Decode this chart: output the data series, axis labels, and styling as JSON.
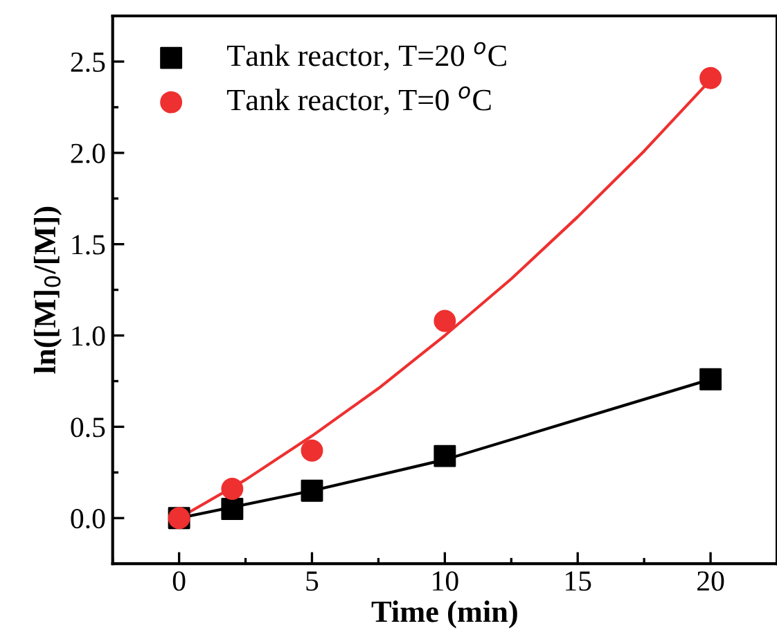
{
  "chart_data": {
    "type": "scatter",
    "xlabel": "Time (min)",
    "ylabel": "ln([M]$_{0}$/[M])",
    "xlim": [
      -2.5,
      22.5
    ],
    "xticks": [
      0,
      5,
      10,
      15,
      20
    ],
    "ylim": [
      -0.25,
      2.75
    ],
    "yticks": [
      {
        "value": 0,
        "label": "0.0"
      },
      0.5,
      {
        "value": 1,
        "label": "1.0"
      },
      1.5,
      {
        "value": 2,
        "label": "2.0"
      },
      2.5
    ],
    "grid": false,
    "legend": "top left",
    "series": [
      {
        "name": "Tank reactor, T=20 $^{o}$C",
        "color": "#000000",
        "marker": "square",
        "x": [
          0,
          2,
          5,
          10,
          20
        ],
        "values": [
          0,
          0.05,
          0.15,
          0.34,
          0.76
        ]
      },
      {
        "name": "Tank reactor, T=0 $^{o}$C",
        "color": "#ee3030",
        "marker": "circle",
        "x": [
          0,
          2,
          5,
          10,
          20
        ],
        "values": [
          0,
          0.16,
          0.37,
          1.08,
          2.41
        ]
      },
      {
        "type": "line",
        "color": "#000000",
        "marker": "none",
        "line_style": "solid",
        "x": [
          0,
          5,
          10,
          15,
          20
        ],
        "values": [
          0,
          0.15,
          0.32,
          0.54,
          0.76
        ]
      },
      {
        "type": "line",
        "color": "#ee3030",
        "marker": "none",
        "line_style": "solid",
        "x": [
          0,
          2.5,
          5,
          7.5,
          10,
          12.5,
          15,
          17.5,
          20
        ],
        "values": [
          0,
          0.21,
          0.45,
          0.71,
          1.0,
          1.31,
          1.65,
          2.01,
          2.4
        ]
      }
    ]
  }
}
